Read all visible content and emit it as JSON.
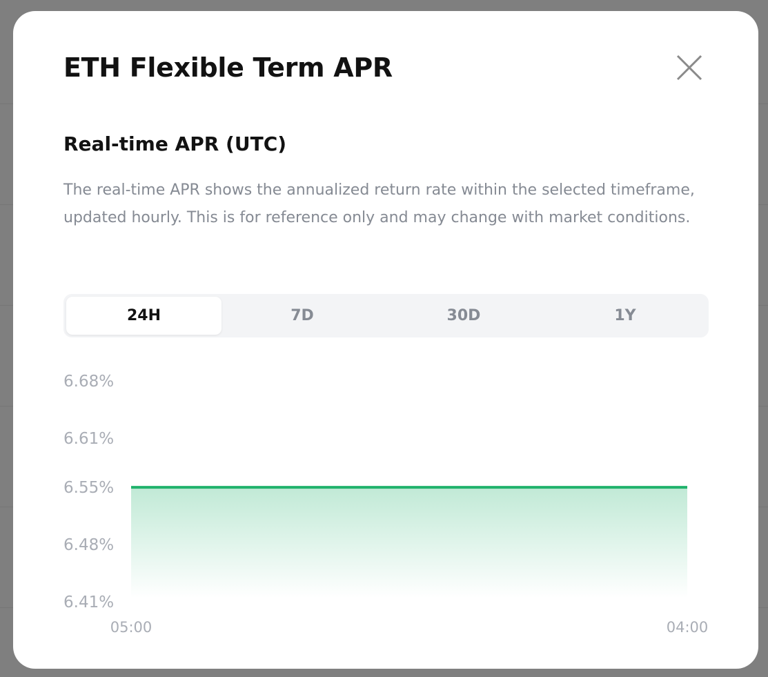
{
  "modal": {
    "title": "ETH Flexible Term APR",
    "close_icon": "close-x-icon",
    "subtitle": "Real-time APR (UTC)",
    "description": "The real-time APR shows the annualized return rate within the selected timeframe, updated hourly. This is for reference only and may change with market conditions.",
    "tabs": [
      {
        "label": "24H",
        "active": true
      },
      {
        "label": "7D",
        "active": false
      },
      {
        "label": "30D",
        "active": false
      },
      {
        "label": "1Y",
        "active": false
      }
    ]
  },
  "chart_data": {
    "type": "area",
    "x": [
      "05:00",
      "04:00"
    ],
    "series": [
      {
        "values": [
          6.55,
          6.55
        ],
        "color": "#20b26c"
      }
    ],
    "yticks": [
      "6.68%",
      "6.61%",
      "6.55%",
      "6.48%",
      "6.41%"
    ],
    "ytick_values": [
      6.68,
      6.61,
      6.55,
      6.48,
      6.41
    ],
    "xticks": [
      "05:00",
      "04:00"
    ],
    "ylim": [
      6.41,
      6.68
    ],
    "grid": false
  }
}
